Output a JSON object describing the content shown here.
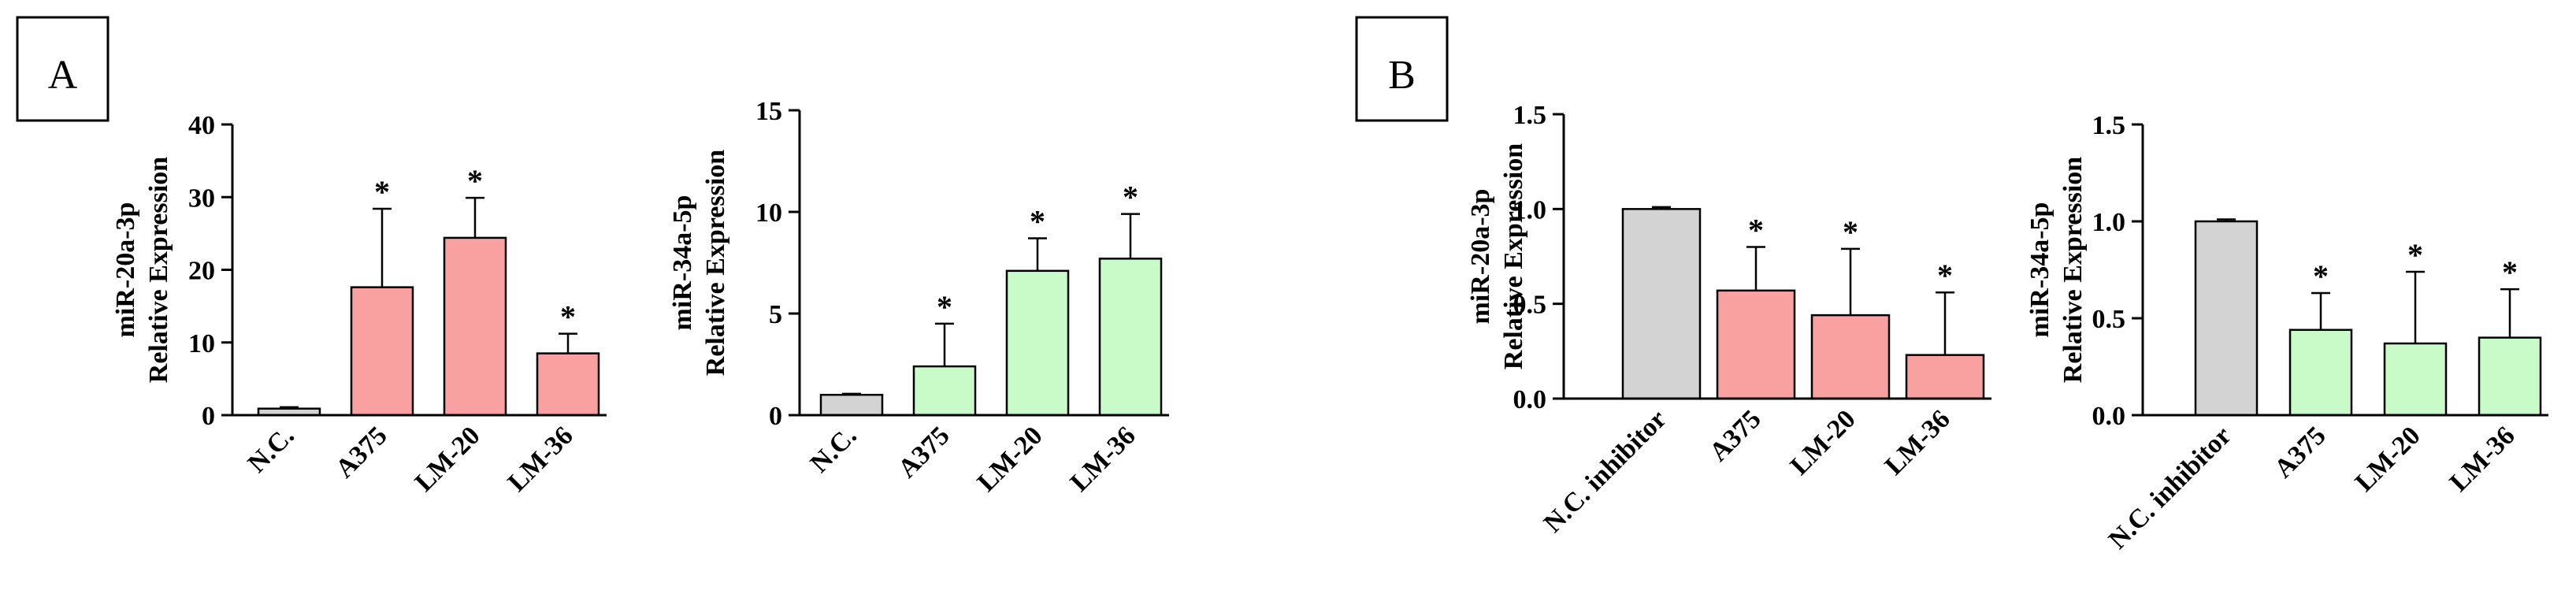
{
  "panels": [
    {
      "letter": "A"
    },
    {
      "letter": "B"
    }
  ],
  "colors": {
    "control": "#d3d3d3",
    "red": "#f9a0a0",
    "green": "#c8fbc8",
    "stroke": "#000000"
  },
  "chart_data": [
    {
      "type": "bar",
      "ylabel_lines": [
        "miR-20a-3p",
        "Relative Expression"
      ],
      "categories": [
        "N.C.",
        "A375",
        "LM-20",
        "LM-36"
      ],
      "values": [
        0.9,
        17.6,
        24.4,
        8.5
      ],
      "errors": [
        0.2,
        10.8,
        5.5,
        2.7
      ],
      "significance": [
        "",
        "*",
        "*",
        "*"
      ],
      "bar_colors": [
        "control",
        "red",
        "red",
        "red"
      ],
      "ylim": [
        0,
        40
      ],
      "yticks": [
        0,
        10,
        20,
        30,
        40
      ],
      "ytick_labels": [
        "0",
        "10",
        "20",
        "30",
        "40"
      ]
    },
    {
      "type": "bar",
      "ylabel_lines": [
        "miR-34a-5p",
        "Relative Expression"
      ],
      "categories": [
        "N.C.",
        "A375",
        "LM-20",
        "LM-36"
      ],
      "values": [
        1.0,
        2.4,
        7.1,
        7.7
      ],
      "errors": [
        0.05,
        2.1,
        1.6,
        2.2
      ],
      "significance": [
        "",
        "*",
        "*",
        "*"
      ],
      "bar_colors": [
        "control",
        "green",
        "green",
        "green"
      ],
      "ylim": [
        0,
        15
      ],
      "yticks": [
        0,
        5,
        10,
        15
      ],
      "ytick_labels": [
        "0",
        "5",
        "10",
        "15"
      ]
    },
    {
      "type": "bar",
      "ylabel_lines": [
        "miR-20a-3p",
        "Relative Expression"
      ],
      "categories": [
        "N.C. inhibitor",
        "A375",
        "LM-20",
        "LM-36"
      ],
      "values": [
        1.0,
        0.57,
        0.44,
        0.23
      ],
      "errors": [
        0.01,
        0.23,
        0.35,
        0.33
      ],
      "significance": [
        "",
        "*",
        "*",
        "*"
      ],
      "bar_colors": [
        "control",
        "red",
        "red",
        "red"
      ],
      "ylim": [
        0,
        1.5
      ],
      "yticks": [
        0,
        0.5,
        1.0,
        1.5
      ],
      "ytick_labels": [
        "0.0",
        "0.5",
        "1.0",
        "1.5"
      ]
    },
    {
      "type": "bar",
      "ylabel_lines": [
        "miR-34a-5p",
        "Relative Expression"
      ],
      "categories": [
        "N.C. inhibitor",
        "A375",
        "LM-20",
        "LM-36"
      ],
      "values": [
        1.0,
        0.44,
        0.37,
        0.4
      ],
      "errors": [
        0.01,
        0.19,
        0.37,
        0.25
      ],
      "significance": [
        "",
        "*",
        "*",
        "*"
      ],
      "bar_colors": [
        "control",
        "green",
        "green",
        "green"
      ],
      "ylim": [
        0,
        1.5
      ],
      "yticks": [
        0,
        0.5,
        1.0,
        1.5
      ],
      "ytick_labels": [
        "0.0",
        "0.5",
        "1.0",
        "1.5"
      ]
    }
  ]
}
